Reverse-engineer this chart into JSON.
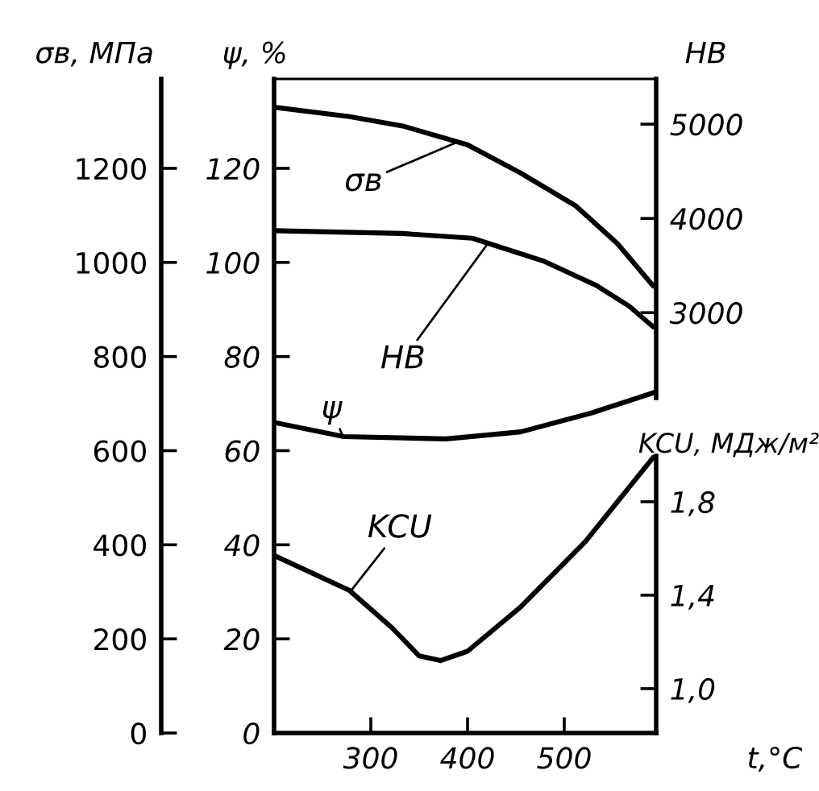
{
  "chart_data": [
    {
      "type": "line",
      "tick_labels": "y",
      "ylabel": "σв, МПа",
      "y2label": "НВ",
      "xlim": [
        200,
        595
      ],
      "xticks": [
        300,
        400,
        500
      ],
      "ylim": [
        0,
        1390
      ],
      "yticks": [
        0,
        200,
        400,
        600,
        800,
        1000,
        1200
      ],
      "y2lim": [
        -1460,
        5480
      ],
      "y2ticks": [
        3000,
        4000,
        5000
      ],
      "series": [
        {
          "name": "σв",
          "color": "#000000",
          "x": [
            200,
            278,
            333,
            400,
            455,
            512,
            555,
            592
          ],
          "values": [
            1330,
            1310,
            1290,
            1250,
            1190,
            1120,
            1040,
            950
          ]
        },
        {
          "name": "НВ",
          "color": "#000000",
          "axis": "y2",
          "x": [
            200,
            333,
            405,
            478,
            533,
            567,
            592
          ],
          "values": [
            3870,
            3840,
            3790,
            3550,
            3290,
            3070,
            2850
          ]
        }
      ]
    },
    {
      "type": "line",
      "xlabel": "t,°C",
      "ylabel": "ψ, %",
      "y2label": "KCU, МДж/м²",
      "xlim": [
        200,
        595
      ],
      "xticks": [
        300,
        400,
        500
      ],
      "ylim": [
        0,
        139
      ],
      "yticks": [
        0,
        20,
        40,
        60,
        80,
        100,
        120
      ],
      "y2lim": [
        0.81,
        3.61
      ],
      "y2ticks": [
        {
          "value": 1.0,
          "label": "1,0"
        },
        {
          "value": 1.4,
          "label": "1,4"
        },
        {
          "value": 1.8,
          "label": "1,8"
        }
      ],
      "series": [
        {
          "name": "ψ",
          "color": "#000000",
          "x": [
            200,
            272,
            378,
            455,
            528,
            595
          ],
          "values": [
            66,
            63,
            62.5,
            64,
            68,
            72.5
          ]
        },
        {
          "name": "KCU",
          "color": "#000000",
          "axis": "y2",
          "x": [
            200,
            278,
            322,
            350,
            372,
            400,
            455,
            522,
            592
          ],
          "values": [
            1.57,
            1.42,
            1.26,
            1.14,
            1.12,
            1.16,
            1.35,
            1.63,
            1.99
          ]
        }
      ]
    }
  ]
}
